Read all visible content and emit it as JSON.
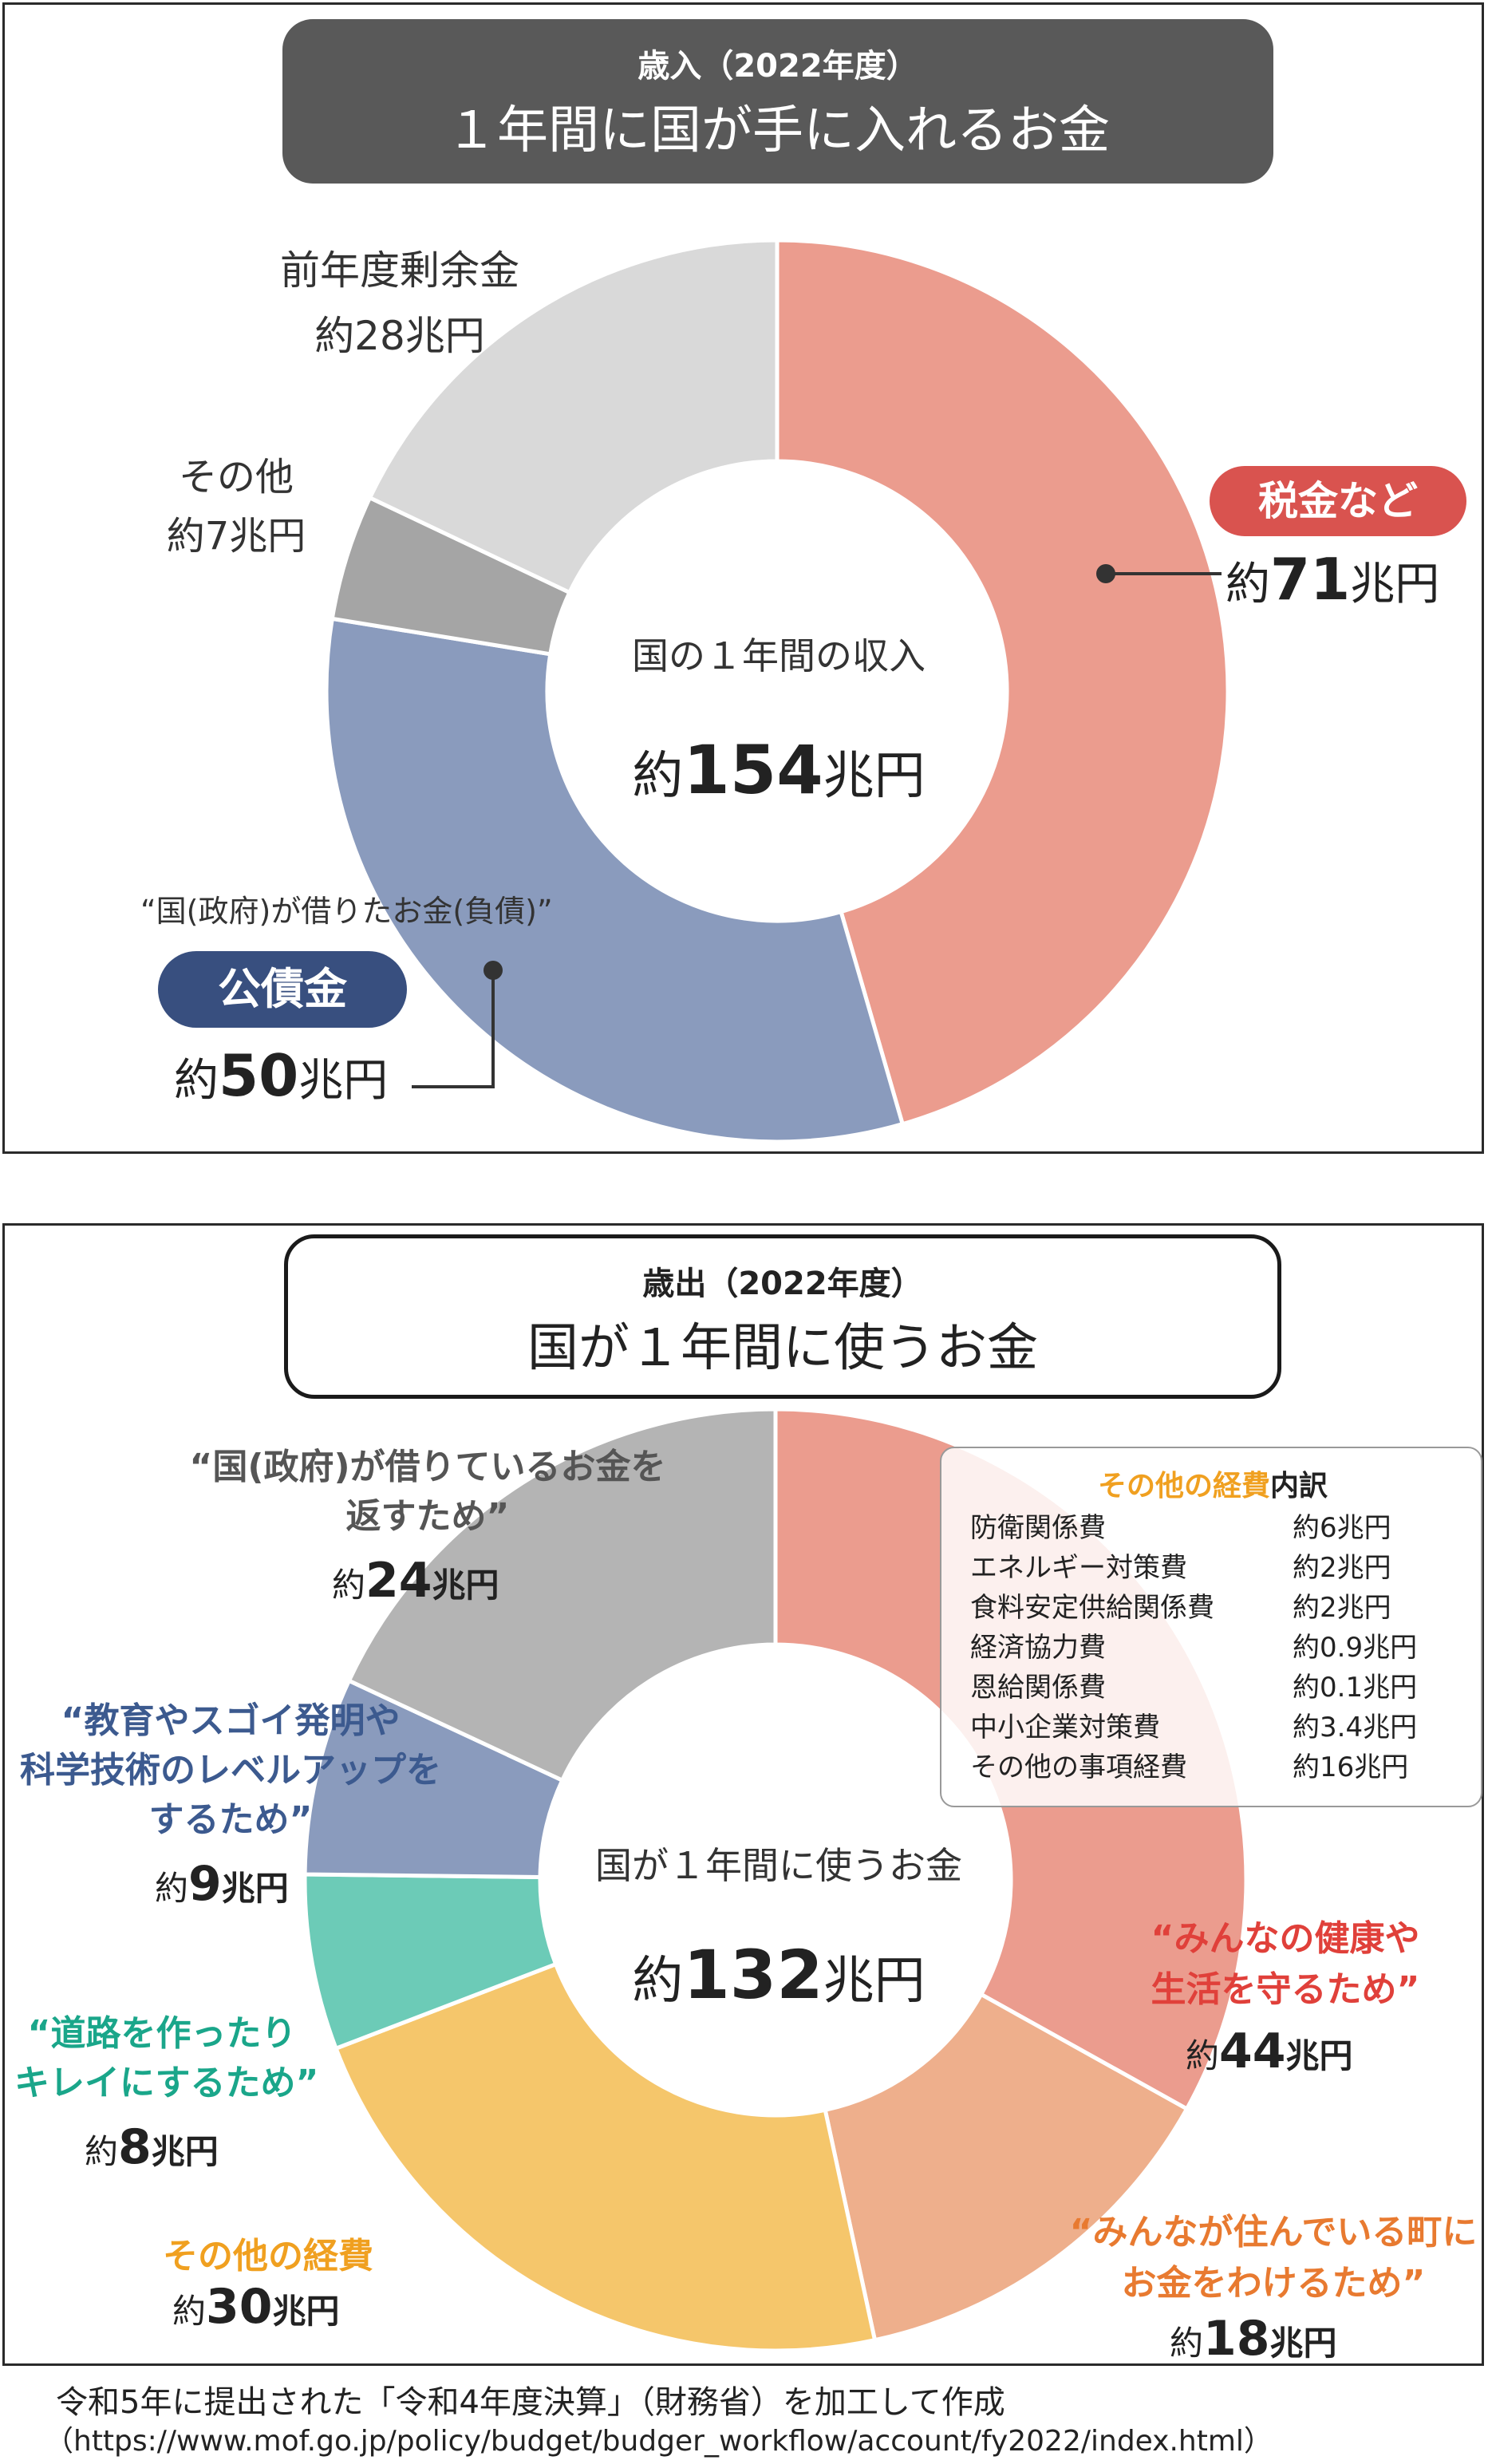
{
  "revenue": {
    "header_sub": "歳入（2022年度）",
    "header_main": "１年間に国が手に入れるお金",
    "center_label": "国の１年間の収入",
    "center_prefix": "約",
    "center_value": "154",
    "center_unit": "兆円",
    "labels": {
      "tax_pill": "税金など",
      "tax_prefix": "約",
      "tax_value": "71",
      "tax_unit": "兆円",
      "bond_note": "“国(政府)が借りたお金(負債)”",
      "bond_pill": "公債金",
      "bond_prefix": "約",
      "bond_value": "50",
      "bond_unit": "兆円",
      "other_name": "その他",
      "other_value": "約7兆円",
      "surplus_name": "前年度剰余金",
      "surplus_value": "約28兆円"
    }
  },
  "expenditure": {
    "header_sub": "歳出（2022年度）",
    "header_main": "国が１年間に使うお金",
    "center_label": "国が１年間に使うお金",
    "center_prefix": "約",
    "center_value": "132",
    "center_unit": "兆円",
    "labels": {
      "health_1": "“みんなの健康や",
      "health_2": "生活を守るため”",
      "health_prefix": "約",
      "health_value": "44",
      "health_unit": "兆円",
      "local_1": "“みんなが住んでいる町に",
      "local_2": "お金をわけるため”",
      "local_prefix": "約",
      "local_value": "18",
      "local_unit": "兆円",
      "other_name": "その他の経費",
      "other_prefix": "約",
      "other_value": "30",
      "other_unit": "兆円",
      "roads_1": "“道路を作ったり",
      "roads_2": "キレイにするため”",
      "roads_prefix": "約",
      "roads_value": "8",
      "roads_unit": "兆円",
      "edu_1": "“教育やスゴイ発明や",
      "edu_2": "科学技術のレベルアップを",
      "edu_3": "するため”",
      "edu_prefix": "約",
      "edu_value": "9",
      "edu_unit": "兆円",
      "debt_1": "“国(政府)が借りているお金を",
      "debt_2": "返すため”",
      "debt_prefix": "約",
      "debt_value": "24",
      "debt_unit": "兆円"
    },
    "breakdown": {
      "title_accent": "その他の経費",
      "title_rest": "内訳",
      "rows": [
        {
          "name": "防衛関係費",
          "value": "約6兆円"
        },
        {
          "name": "エネルギー対策費",
          "value": "約2兆円"
        },
        {
          "name": "食料安定供給関係費",
          "value": "約2兆円"
        },
        {
          "name": "経済協力費",
          "value": "約0.9兆円"
        },
        {
          "name": "恩給関係費",
          "value": "約0.1兆円"
        },
        {
          "name": "中小企業対策費",
          "value": "約3.4兆円"
        },
        {
          "name": "その他の事項経費",
          "value": "約16兆円"
        }
      ]
    }
  },
  "source": {
    "line1": "令和5年に提出された「令和4年度決算」（財務省）を加工して作成",
    "line2": "（https://www.mof.go.jp/policy/budget/budger_workflow/account/fy2022/index.html）"
  },
  "chart_data": [
    {
      "type": "pie",
      "title": "歳入（2022年度）",
      "total": 154,
      "unit": "兆円",
      "categories": [
        "税金など",
        "公債金",
        "その他",
        "前年度剰余金"
      ],
      "values": [
        71,
        50,
        7,
        28
      ],
      "colors": [
        "#eb9c8e",
        "#8a9bbd",
        "#a5a5a5",
        "#d9d9d9"
      ]
    },
    {
      "type": "pie",
      "title": "歳出（2022年度）",
      "total": 132,
      "unit": "兆円",
      "categories": [
        "みんなの健康や生活を守るため",
        "みんなが住んでいる町にお金をわけるため",
        "その他の経費",
        "道路を作ったりキレイにするため",
        "教育やスゴイ発明や科学技術のレベルアップをするため",
        "国(政府)が借りているお金を返すため"
      ],
      "values": [
        44,
        18,
        30,
        8,
        9,
        24
      ],
      "colors": [
        "#eb9c8e",
        "#eeaf8c",
        "#f5c66b",
        "#6ccbb7",
        "#8a9bbd",
        "#b4b4b4"
      ]
    }
  ]
}
